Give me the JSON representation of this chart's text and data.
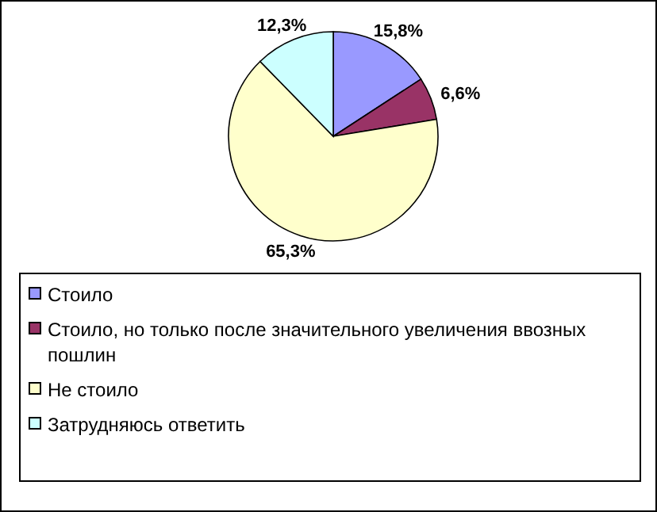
{
  "chart_data": {
    "type": "pie",
    "categories": [
      "Стоило",
      "Стоило, но только после значительного увеличения ввозных пошлин",
      "Не стоило",
      "Затрудняюсь ответить"
    ],
    "values": [
      15.8,
      6.6,
      65.3,
      12.3
    ],
    "colors": [
      "#9999ff",
      "#993366",
      "#ffffcc",
      "#ccffff"
    ],
    "value_labels": [
      "15,8%",
      "6,6%",
      "65,3%",
      "12,3%"
    ],
    "legend": "bottom"
  }
}
